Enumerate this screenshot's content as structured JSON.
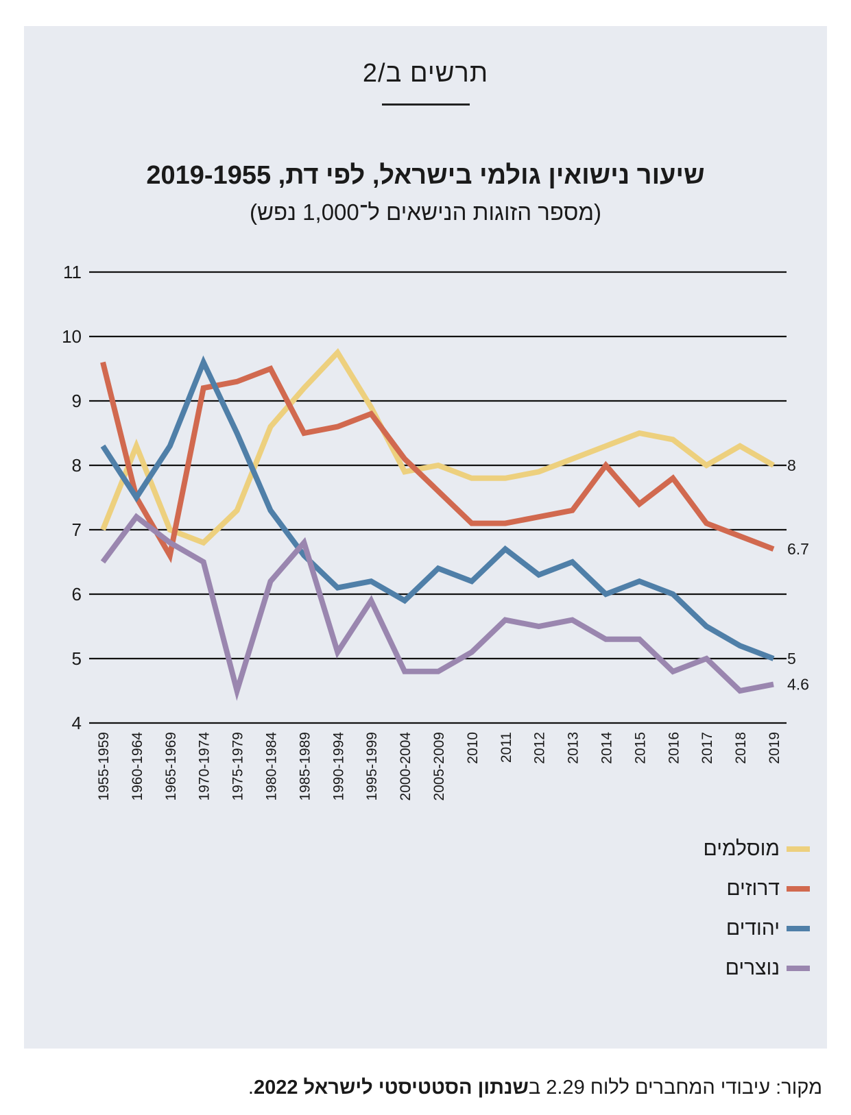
{
  "figure_label": "תרשים ב/2",
  "chart_data": {
    "type": "line",
    "title": "שיעור נישואין גולמי בישראל, לפי דת, 2019-1955",
    "subtitle": "(מספר הזוגות הנישאים ל־1,000 נפש)",
    "categories": [
      "1955-1959",
      "1960-1964",
      "1965-1969",
      "1970-1974",
      "1975-1979",
      "1980-1984",
      "1985-1989",
      "1990-1994",
      "1995-1999",
      "2000-2004",
      "2005-2009",
      "2010",
      "2011",
      "2012",
      "2013",
      "2014",
      "2015",
      "2016",
      "2017",
      "2018",
      "2019"
    ],
    "ylim": [
      4,
      11
    ],
    "yticks": [
      "4",
      "5",
      "6",
      "7",
      "8",
      "9",
      "10",
      "11"
    ],
    "grid": true,
    "legend_position": "bottom-right",
    "series": [
      {
        "name": "מוסלמים",
        "color": "#edd07e",
        "end_label": "8",
        "values": [
          7.0,
          8.3,
          7.0,
          6.8,
          7.3,
          8.6,
          9.2,
          9.75,
          8.9,
          7.9,
          8.0,
          7.8,
          7.8,
          7.9,
          8.1,
          8.3,
          8.5,
          8.4,
          8.0,
          8.3,
          8.0
        ]
      },
      {
        "name": "דרוזים",
        "color": "#d1694f",
        "end_label": "6.7",
        "values": [
          9.6,
          7.5,
          6.6,
          9.2,
          9.3,
          9.5,
          8.5,
          8.6,
          8.8,
          8.1,
          7.6,
          7.1,
          7.1,
          7.2,
          7.3,
          8.0,
          7.4,
          7.8,
          7.1,
          6.9,
          6.7
        ]
      },
      {
        "name": "יהודים",
        "color": "#4f7fa8",
        "end_label": "5",
        "values": [
          8.3,
          7.5,
          8.3,
          9.6,
          8.5,
          7.3,
          6.6,
          6.1,
          6.2,
          5.9,
          6.4,
          6.2,
          6.7,
          6.3,
          6.5,
          6.0,
          6.2,
          6.0,
          5.5,
          5.2,
          5.0
        ]
      },
      {
        "name": "נוצרים",
        "color": "#9a86af",
        "end_label": "4.6",
        "values": [
          6.5,
          7.2,
          6.8,
          6.5,
          4.5,
          6.2,
          6.8,
          5.1,
          5.9,
          4.8,
          4.8,
          5.1,
          5.6,
          5.5,
          5.6,
          5.3,
          5.3,
          4.8,
          5.0,
          4.5,
          4.6
        ]
      }
    ]
  },
  "source": {
    "prefix": "מקור: עיבודי המחברים ללוח 2.29 ב",
    "bold": "שנתון הסטטיסטי לישראל 2022",
    "suffix": "."
  }
}
